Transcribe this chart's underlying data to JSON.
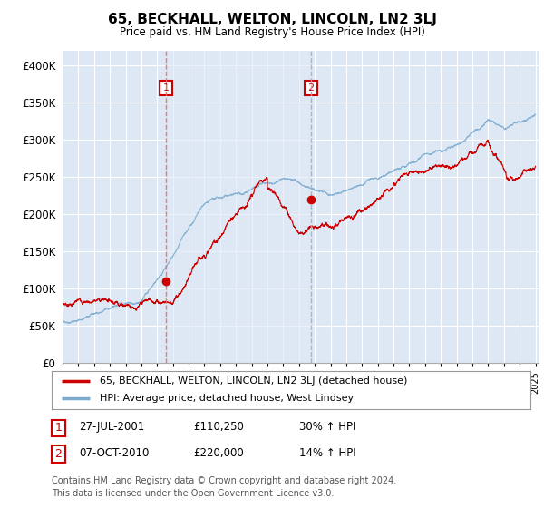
{
  "title": "65, BECKHALL, WELTON, LINCOLN, LN2 3LJ",
  "subtitle": "Price paid vs. HM Land Registry's House Price Index (HPI)",
  "ylim": [
    0,
    420000
  ],
  "yticks": [
    0,
    50000,
    100000,
    150000,
    200000,
    250000,
    300000,
    350000,
    400000
  ],
  "ytick_labels": [
    "£0",
    "£50K",
    "£100K",
    "£150K",
    "£200K",
    "£250K",
    "£300K",
    "£350K",
    "£400K"
  ],
  "legend_line1": "65, BECKHALL, WELTON, LINCOLN, LN2 3LJ (detached house)",
  "legend_line2": "HPI: Average price, detached house, West Lindsey",
  "note1_date": "27-JUL-2001",
  "note1_price": "£110,250",
  "note1_hpi": "30% ↑ HPI",
  "note2_date": "07-OCT-2010",
  "note2_price": "£220,000",
  "note2_hpi": "14% ↑ HPI",
  "footer": "Contains HM Land Registry data © Crown copyright and database right 2024.\nThis data is licensed under the Open Government Licence v3.0.",
  "red_color": "#cc0000",
  "blue_color": "#7aabcf",
  "vline1_color": "#ff6666",
  "vline2_color": "#aaaacc",
  "shade_color": "#dde8f4",
  "background_color": "#ffffff",
  "plot_bg_color": "#dde8f4",
  "grid_color": "#ffffff",
  "sale1_year": 2001.57,
  "sale1_price": 110250,
  "sale2_year": 2010.76,
  "sale2_price": 220000
}
